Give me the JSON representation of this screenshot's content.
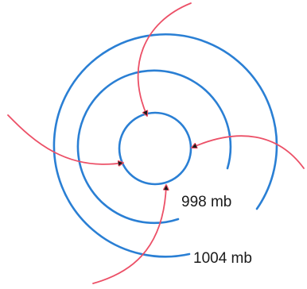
{
  "colors": {
    "isobar": "#2a7fd4",
    "wind": "#ec5067",
    "text": "#1a1a1a",
    "background": "#ffffff"
  },
  "isobars": [
    {
      "name": "inner-isobar"
    },
    {
      "name": "middle-isobar",
      "label": "998 mb"
    },
    {
      "name": "outer-isobar",
      "label": "1004 mb"
    }
  ],
  "wind_arrows": [
    {
      "name": "wind-arrow-north"
    },
    {
      "name": "wind-arrow-west"
    },
    {
      "name": "wind-arrow-east"
    },
    {
      "name": "wind-arrow-south"
    }
  ]
}
